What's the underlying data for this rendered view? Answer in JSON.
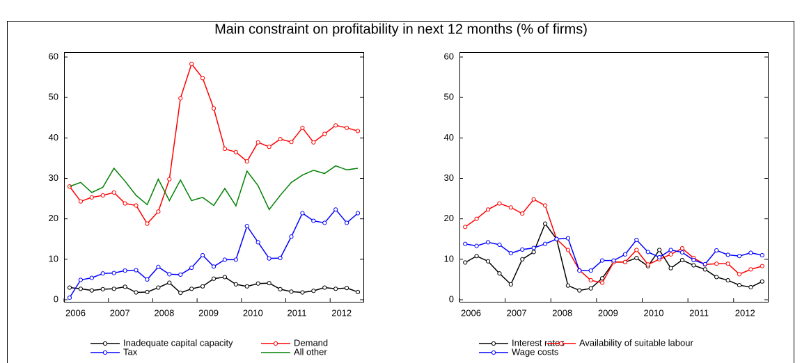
{
  "title": "Main constraint on profitability in next 12 months (% of firms)",
  "chart_data": [
    {
      "type": "line",
      "legend": "bottom",
      "grid": false,
      "categories": [
        "2006",
        null,
        null,
        null,
        "2007",
        null,
        null,
        null,
        "2008",
        null,
        null,
        null,
        "2009",
        null,
        null,
        null,
        "2010",
        null,
        null,
        null,
        "2011",
        null,
        null,
        null,
        "2012",
        null,
        null
      ],
      "ylim": [
        0,
        61
      ],
      "yticks": [
        0,
        10,
        20,
        30,
        40,
        50,
        60
      ],
      "series": [
        {
          "name": "Inadequate capital capacity",
          "color": "#000000",
          "marker": true,
          "values": [
            3,
            2.7,
            2.3,
            2.6,
            2.7,
            3.2,
            1.8,
            1.9,
            3,
            4.2,
            1.7,
            2.7,
            3.3,
            5.2,
            5.6,
            3.8,
            3.3,
            4,
            4.1,
            2.6,
            2,
            1.8,
            2.2,
            3,
            2.7,
            2.9,
            1.9
          ]
        },
        {
          "name": "Demand",
          "color": "#ff0000",
          "marker": true,
          "values": [
            28,
            24.3,
            25.3,
            25.8,
            26.5,
            23.8,
            23.3,
            18.8,
            21.8,
            29.8,
            49.8,
            58.3,
            54.8,
            47.3,
            37.3,
            36.5,
            34.2,
            38.9,
            37.8,
            39.7,
            39,
            42.5,
            38.9,
            41,
            43.1,
            42.5,
            41.7
          ]
        },
        {
          "name": "Tax",
          "color": "#0000ff",
          "marker": true,
          "values": [
            0.5,
            4.9,
            5.4,
            6.5,
            6.6,
            7.2,
            7.3,
            5,
            8.1,
            6.3,
            6.2,
            7.9,
            11,
            8.2,
            9.9,
            9.9,
            18.2,
            14.2,
            10.2,
            10.3,
            15.6,
            21.4,
            19.5,
            19,
            22.3,
            19,
            21.4
          ]
        },
        {
          "name": "All other",
          "color": "#008000",
          "marker": false,
          "values": [
            28,
            29,
            26.5,
            27.8,
            32.5,
            29.3,
            25.8,
            23.5,
            29.8,
            24.5,
            29.6,
            24.5,
            25.3,
            23.3,
            27.5,
            23.2,
            31.8,
            28.2,
            22.3,
            25.8,
            29,
            30.8,
            32,
            31.2,
            33.1,
            32.1,
            32.5
          ]
        }
      ]
    },
    {
      "type": "line",
      "legend": "bottom",
      "grid": false,
      "categories": [
        "2006",
        null,
        null,
        null,
        "2007",
        null,
        null,
        null,
        "2008",
        null,
        null,
        null,
        "2009",
        null,
        null,
        null,
        "2010",
        null,
        null,
        null,
        "2011",
        null,
        null,
        null,
        "2012",
        null,
        null
      ],
      "ylim": [
        0,
        61
      ],
      "yticks": [
        0,
        10,
        20,
        30,
        40,
        50,
        60
      ],
      "series": [
        {
          "name": "Interest rates",
          "color": "#000000",
          "marker": true,
          "values": [
            9.2,
            10.8,
            9.5,
            6.5,
            3.8,
            10,
            11.8,
            18.8,
            15,
            3.5,
            2.3,
            2.8,
            5.3,
            9.3,
            9.3,
            10.3,
            8.3,
            12.3,
            7.8,
            9.8,
            8.5,
            7.5,
            5.6,
            4.8,
            3.6,
            3.1,
            4.5
          ]
        },
        {
          "name": "Availability of suitable labour",
          "color": "#ff0000",
          "marker": true,
          "values": [
            18,
            20,
            22.3,
            23.8,
            22.8,
            21.3,
            24.8,
            23.3,
            15,
            12.3,
            7.3,
            4.8,
            4.2,
            9.3,
            9.3,
            12.3,
            8.7,
            10,
            11.2,
            12.7,
            10.3,
            8.7,
            8.9,
            8.9,
            6.3,
            7.5,
            8.3
          ]
        },
        {
          "name": "Wage costs",
          "color": "#0000ff",
          "marker": true,
          "values": [
            13.8,
            13.3,
            14.2,
            13.6,
            11.5,
            12.4,
            12.8,
            13.8,
            15,
            15.2,
            7.2,
            7.2,
            9.7,
            9.7,
            11.2,
            14.8,
            11.8,
            10.5,
            12.3,
            11.7,
            9.8,
            8.8,
            12.2,
            11.1,
            10.8,
            11.6,
            11
          ]
        }
      ]
    }
  ]
}
